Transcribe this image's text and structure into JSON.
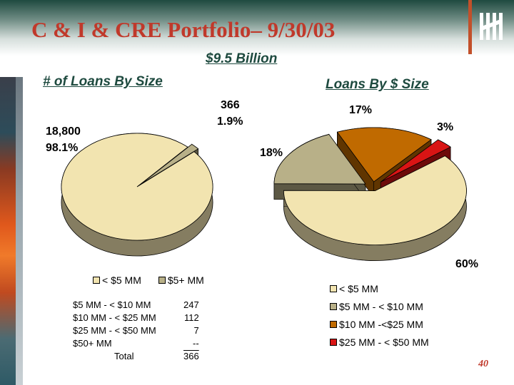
{
  "slide": {
    "title": "C & I & CRE Portfolio– 9/30/03",
    "subtitle": "$9.5 Billion",
    "page_number": "40"
  },
  "left_chart": {
    "heading": "# of Loans By Size",
    "labels": {
      "small_count": "18,800",
      "small_pct": "98.1%",
      "large_count": "366",
      "large_pct": "1.9%"
    },
    "legend": [
      "< $5 MM",
      "$5+ MM"
    ]
  },
  "breakdown": {
    "rows": [
      {
        "label": "$5 MM - < $10 MM",
        "value": "247"
      },
      {
        "label": "$10 MM - < $25 MM",
        "value": "112"
      },
      {
        "label": "$25 MM - < $50 MM",
        "value": "7"
      },
      {
        "label": "$50+ MM",
        "value": "--"
      }
    ],
    "total_label": "Total",
    "total_value": "366"
  },
  "right_chart": {
    "heading": "Loans By $ Size",
    "labels": [
      "60%",
      "18%",
      "17%",
      "3%"
    ],
    "legend": [
      "< $5 MM",
      "$5 MM - < $10 MM",
      "$10 MM -<$25 MM",
      "$25 MM - < $50 MM"
    ]
  },
  "colors": {
    "title": "#c0392b",
    "heading": "#1e4a3f",
    "slice_cream": "#f2e4b0",
    "slice_tan": "#b8b088",
    "slice_orange": "#c06a00",
    "slice_red": "#d91414"
  },
  "chart_data": [
    {
      "type": "pie",
      "title": "# of Loans By Size",
      "categories": [
        "< $5 MM",
        "$5+ MM"
      ],
      "values": [
        18800,
        366
      ],
      "percents": [
        98.1,
        1.9
      ],
      "legend": "bottom"
    },
    {
      "type": "pie",
      "title": "Loans By $ Size",
      "categories": [
        "< $5 MM",
        "$5 MM - < $10 MM",
        "$10 MM -<$25 MM",
        "$25 MM - < $50 MM"
      ],
      "values": [
        60,
        18,
        17,
        3
      ],
      "legend": "bottom"
    }
  ]
}
